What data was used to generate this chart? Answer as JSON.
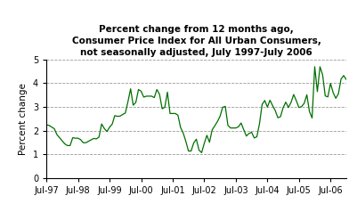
{
  "title": "Percent change from 12 months ago,\nConsumer Price Index for All Urban Consumers,\nnot seasonally adjusted, July 1997-July 2006",
  "ylabel": "Percent change",
  "ylim": [
    0,
    5
  ],
  "yticks": [
    0,
    1,
    2,
    3,
    4,
    5
  ],
  "line_color": "#007000",
  "line_width": 0.9,
  "background_color": "#ffffff",
  "title_fontsize": 7.5,
  "ylabel_fontsize": 7.5,
  "tick_fontsize": 7.0,
  "data": {
    "values": [
      2.24,
      2.22,
      2.15,
      2.08,
      1.83,
      1.7,
      1.57,
      1.44,
      1.37,
      1.37,
      1.7,
      1.68,
      1.68,
      1.62,
      1.49,
      1.49,
      1.55,
      1.61,
      1.67,
      1.65,
      1.73,
      2.28,
      2.09,
      1.96,
      2.14,
      2.27,
      2.63,
      2.6,
      2.61,
      2.68,
      2.74,
      3.22,
      3.76,
      3.07,
      3.19,
      3.73,
      3.66,
      3.41,
      3.45,
      3.45,
      3.45,
      3.39,
      3.73,
      3.53,
      2.92,
      2.98,
      3.62,
      2.72,
      2.72,
      2.72,
      2.65,
      2.13,
      1.9,
      1.55,
      1.14,
      1.14,
      1.48,
      1.64,
      1.18,
      1.07,
      1.46,
      1.8,
      1.51,
      2.03,
      2.2,
      2.38,
      2.6,
      2.98,
      3.02,
      2.22,
      2.11,
      2.11,
      2.11,
      2.16,
      2.32,
      2.04,
      1.77,
      1.88,
      1.93,
      1.69,
      1.74,
      2.29,
      3.1,
      3.27,
      2.99,
      3.28,
      3.05,
      2.84,
      2.54,
      2.59,
      2.97,
      3.2,
      2.97,
      3.19,
      3.52,
      3.26,
      2.97,
      3.01,
      3.15,
      3.51,
      2.8,
      2.53,
      4.69,
      3.64,
      4.69,
      4.35,
      3.46,
      3.42,
      3.99,
      3.6,
      3.36,
      3.55,
      4.17,
      4.32,
      4.15
    ]
  },
  "xtick_labels": [
    "Jul-97",
    "Jul-98",
    "Jul-99",
    "Jul-00",
    "Jul-01",
    "Jul-02",
    "Jul-03",
    "Jul-04",
    "Jul-05",
    "Jul-06"
  ],
  "xtick_positions": [
    0,
    12,
    24,
    36,
    48,
    60,
    72,
    84,
    96,
    108
  ]
}
